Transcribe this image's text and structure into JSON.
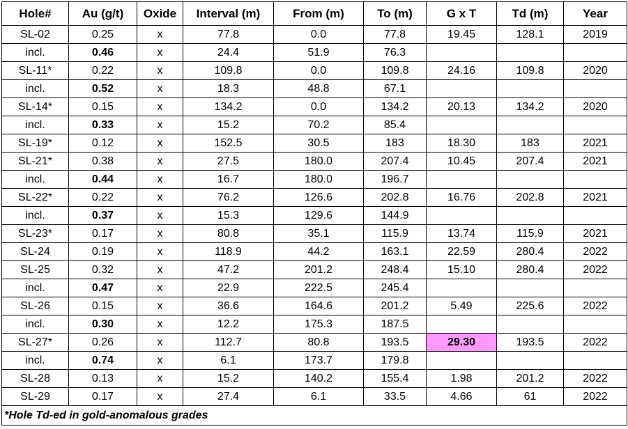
{
  "table": {
    "header": [
      "Hole#",
      "Au (g/t)",
      "Oxide",
      "Interval (m)",
      "From (m)",
      "To (m)",
      "G x T",
      "Td (m)",
      "Year"
    ],
    "rows": [
      [
        "SL-02",
        "0.25",
        "x",
        "77.8",
        "0.0",
        "77.8",
        "19.45",
        "128.1",
        "2019"
      ],
      [
        "incl.",
        "0.46",
        "x",
        "24.4",
        "51.9",
        "76.3"
      ],
      [
        "SL-11*",
        "0.22",
        "x",
        "109.8",
        "0.0",
        "109.8",
        "24.16",
        "109.8",
        "2020"
      ],
      [
        "incl.",
        "0.52",
        "x",
        "18.3",
        "48.8",
        "67.1"
      ],
      [
        "SL-14*",
        "0.15",
        "x",
        "134.2",
        "0.0",
        "134.2",
        "20.13",
        "134.2",
        "2020"
      ],
      [
        "incl.",
        "0.33",
        "x",
        "15.2",
        "70.2",
        "85.4"
      ],
      [
        "SL-19*",
        "0.12",
        "x",
        "152.5",
        "30.5",
        "183",
        "18.30",
        "183",
        "2021"
      ],
      [
        "SL-21*",
        "0.38",
        "x",
        "27.5",
        "180.0",
        "207.4",
        "10.45",
        "207.4",
        "2021"
      ],
      [
        "incl.",
        "0.44",
        "x",
        "16.7",
        "180.0",
        "196.7"
      ],
      [
        "SL-22*",
        "0.22",
        "x",
        "76.2",
        "126.6",
        "202.8",
        "16.76",
        "202.8",
        "2021"
      ],
      [
        "incl.",
        "0.37",
        "x",
        "15.3",
        "129.6",
        "144.9"
      ],
      [
        "SL-23*",
        "0.17",
        "x",
        "80.8",
        "35.1",
        "115.9",
        "13.74",
        "115.9",
        "2021"
      ],
      [
        "SL-24",
        "0.19",
        "x",
        "118.9",
        "44.2",
        "163.1",
        "22.59",
        "280.4",
        "2022"
      ],
      [
        "SL-25",
        "0.32",
        "x",
        "47.2",
        "201.2",
        "248.4",
        "15.10",
        "280.4",
        "2022"
      ],
      [
        "incl.",
        "0.47",
        "x",
        "22.9",
        "222.5",
        "245.4"
      ],
      [
        "SL-26",
        "0.15",
        "x",
        "36.6",
        "164.6",
        "201.2",
        "5.49",
        "225.6",
        "2022"
      ],
      [
        "incl.",
        "0.30",
        "x",
        "12.2",
        "175.3",
        "187.5"
      ],
      [
        "SL-27*",
        "0.26",
        "x",
        "112.7",
        "80.8",
        "193.5",
        "29.30",
        "193.5",
        "2022"
      ],
      [
        "incl.",
        "0.74",
        "x",
        "6.1",
        "173.7",
        "179.8"
      ],
      [
        "SL-28",
        "0.13",
        "x",
        "15.2",
        "140.2",
        "155.4",
        "1.98",
        "201.2",
        "2022"
      ],
      [
        "SL-29",
        "0.17",
        "x",
        "27.4",
        "6.1",
        "33.5",
        "4.66",
        "61",
        "2022"
      ]
    ],
    "footnote": "*Hole Td-ed in gold-anomalous grades"
  }
}
